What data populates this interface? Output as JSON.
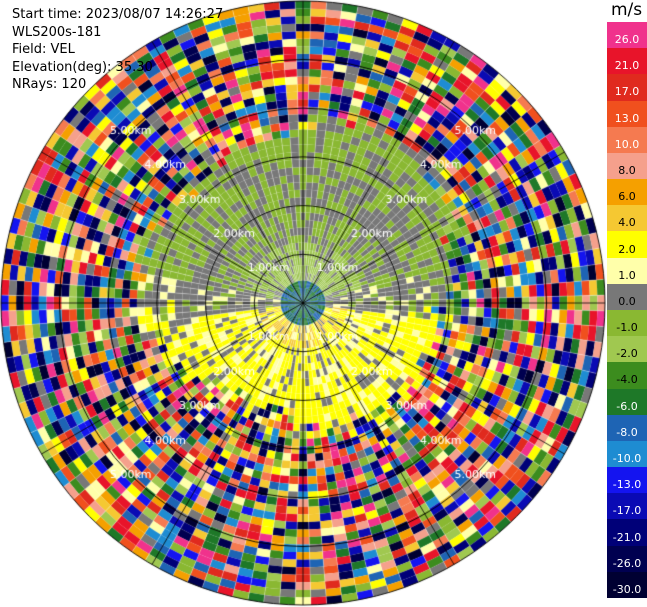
{
  "info": {
    "start_time": "Start time: 2023/08/07 14:26:27",
    "instrument": "WLS200s-181",
    "field": "Field: VEL",
    "elevation": "Elevation(deg): 35.30",
    "nrays": "NRays: 120"
  },
  "colorbar": {
    "unit": "m/s",
    "levels": [
      {
        "value": "26.0",
        "color": "#f0328c",
        "text": "#ffffff"
      },
      {
        "value": "21.0",
        "color": "#e8142a",
        "text": "#ffffff"
      },
      {
        "value": "17.0",
        "color": "#e02a1e",
        "text": "#ffffff"
      },
      {
        "value": "13.0",
        "color": "#f0501e",
        "text": "#ffffff"
      },
      {
        "value": "10.0",
        "color": "#f57a50",
        "text": "#ffffff"
      },
      {
        "value": "8.0",
        "color": "#f5a08c",
        "text": "#000000"
      },
      {
        "value": "6.0",
        "color": "#f5a000",
        "text": "#000000"
      },
      {
        "value": "4.0",
        "color": "#f5c832",
        "text": "#000000"
      },
      {
        "value": "2.0",
        "color": "#ffff00",
        "text": "#000000"
      },
      {
        "value": "1.0",
        "color": "#ffffaa",
        "text": "#000000"
      },
      {
        "value": "0.0",
        "color": "#787878",
        "text": "#000000"
      },
      {
        "value": "-1.0",
        "color": "#8ab832",
        "text": "#000000"
      },
      {
        "value": "-2.0",
        "color": "#a0c850",
        "text": "#000000"
      },
      {
        "value": "-4.0",
        "color": "#3c8c1e",
        "text": "#000000"
      },
      {
        "value": "-6.0",
        "color": "#1e7828",
        "text": "#ffffff"
      },
      {
        "value": "-8.0",
        "color": "#1e64b4",
        "text": "#ffffff"
      },
      {
        "value": "-10.0",
        "color": "#1e8cd2",
        "text": "#ffffff"
      },
      {
        "value": "-13.0",
        "color": "#1414f0",
        "text": "#ffffff"
      },
      {
        "value": "-17.0",
        "color": "#0a0ab4",
        "text": "#ffffff"
      },
      {
        "value": "-21.0",
        "color": "#000078",
        "text": "#ffffff"
      },
      {
        "value": "-26.0",
        "color": "#000050",
        "text": "#ffffff"
      },
      {
        "value": "-30.0",
        "color": "#000032",
        "text": "#ffffff"
      }
    ]
  },
  "ring_labels": [
    "1.00km",
    "2.00km",
    "3.00km",
    "4.00km",
    "5.00km"
  ],
  "chart_data": {
    "type": "heatmap",
    "subtype": "ppi_polar",
    "field": "VEL",
    "unit": "m/s",
    "range_rings_km": [
      1,
      2,
      3,
      4,
      5
    ],
    "max_range_km": 6.2,
    "nrays": 120,
    "azimuth_lines_deg": [
      0,
      30,
      60,
      90,
      120,
      150,
      180,
      210,
      240,
      270,
      300,
      330
    ],
    "colorbar_range": [
      -30,
      26
    ],
    "pattern": {
      "center_velocity": -6,
      "north_velocity_near": -1.5,
      "south_velocity_near": 2,
      "far_field": "noise"
    }
  }
}
